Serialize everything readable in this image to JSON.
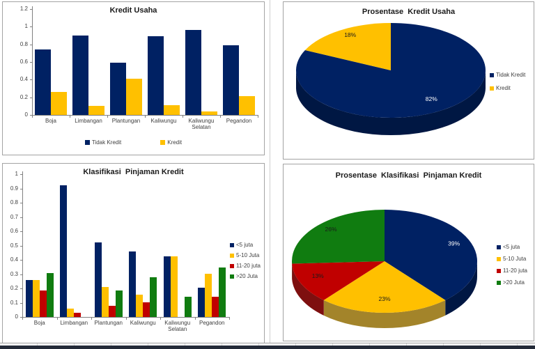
{
  "colors": {
    "navy": "#002163",
    "navy_side": "#001743",
    "gold": "#FFC000",
    "gold_side": "#a3842a",
    "red": "#C00000",
    "red_side": "#7e0f0f",
    "green": "#107C10",
    "green_side": "#0a4f0a",
    "axis": "#808080",
    "text": "#3f3f3f",
    "title_text": "#1a1a1a",
    "panel_border": "#a3a3a3",
    "sheet_gridline": "#d8d8d8",
    "window_edge_bar": "#232a38"
  },
  "chart_data": [
    {
      "type": "bar",
      "title": "Kredit Usaha",
      "categories": [
        "Boja",
        "Limbangan",
        "Plantungan",
        "Kaliwungu",
        "Kaliwungu Selatan",
        "Pegandon"
      ],
      "series": [
        {
          "name": "Tidak Kredit",
          "color": "navy",
          "values": [
            0.74,
            0.9,
            0.59,
            0.89,
            0.96,
            0.79
          ]
        },
        {
          "name": "Kredit",
          "color": "gold",
          "values": [
            0.26,
            0.1,
            0.41,
            0.11,
            0.04,
            0.21
          ]
        }
      ],
      "ylabel": "",
      "xlabel": "",
      "ylim": [
        0,
        1.2
      ],
      "ytick": 0.2,
      "grid": false,
      "legend_position": "bottom"
    },
    {
      "type": "pie",
      "title": "Prosentase  Kredit Usaha",
      "labels": [
        "Tidak Kredit",
        "Kredit"
      ],
      "values": [
        82,
        18
      ],
      "slice_labels": [
        "82%",
        "18%"
      ],
      "colors": [
        "navy",
        "gold"
      ],
      "label_styles": [
        "light",
        "dark"
      ],
      "legend_position": "right",
      "effect": "3d"
    },
    {
      "type": "bar",
      "title": "Klasifikasi  Pinjaman Kredit",
      "categories": [
        "Boja",
        "Limbangan",
        "Plantungan",
        "Kaliwungu",
        "Kaliwungu Selatan",
        "Pegandon"
      ],
      "series": [
        {
          "name": "<5 juta",
          "color": "navy",
          "values": [
            0.26,
            0.92,
            0.52,
            0.46,
            0.425,
            0.205
          ]
        },
        {
          "name": "5-10 Juta",
          "color": "gold",
          "values": [
            0.26,
            0.06,
            0.21,
            0.155,
            0.425,
            0.3
          ]
        },
        {
          "name": "11-20 juta",
          "color": "red",
          "values": [
            0.185,
            0.03,
            0.08,
            0.1,
            0,
            0.14
          ]
        },
        {
          "name": ">20 Juta",
          "color": "green",
          "values": [
            0.305,
            0,
            0.185,
            0.28,
            0.14,
            0.345
          ]
        }
      ],
      "ylabel": "",
      "xlabel": "",
      "ylim": [
        0,
        1
      ],
      "ytick": 0.1,
      "grid": false,
      "legend_position": "right"
    },
    {
      "type": "pie",
      "title": "Prosentase  Klasifikasi  Pinjaman Kredit",
      "labels": [
        "<5 juta",
        "5-10 Juta",
        "11-20 juta",
        ">20 Juta"
      ],
      "values": [
        39,
        23,
        13,
        26
      ],
      "slice_labels": [
        "39%",
        "23%",
        "13%",
        "26%"
      ],
      "colors": [
        "navy",
        "gold",
        "red",
        "green"
      ],
      "label_styles": [
        "light",
        "dark",
        "dark",
        "dark"
      ],
      "legend_position": "right",
      "effect": "3d"
    }
  ]
}
